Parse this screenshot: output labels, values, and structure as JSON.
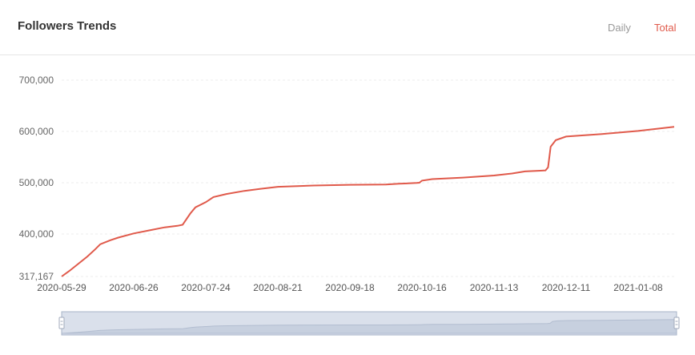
{
  "header": {
    "title": "Followers Trends",
    "tabs": [
      {
        "label": "Daily",
        "active": false
      },
      {
        "label": "Total",
        "active": true
      }
    ]
  },
  "colors": {
    "line": "#e05a4b",
    "active_tab": "#e05a4b",
    "inactive_tab": "#999999",
    "grid": "#eeeeee",
    "slider_fill": "#d5dbe6"
  },
  "chart_data": {
    "type": "line",
    "title": "",
    "xlabel": "",
    "ylabel": "",
    "ylim": [
      317167,
      700000
    ],
    "y_ticks": [
      317167,
      400000,
      500000,
      600000,
      700000
    ],
    "y_tick_labels": [
      "317,167",
      "400,000",
      "500,000",
      "600,000",
      "700,000"
    ],
    "x_ticks": [
      "2020-05-29",
      "2020-06-26",
      "2020-07-24",
      "2020-08-21",
      "2020-09-18",
      "2020-10-16",
      "2020-11-13",
      "2020-12-11",
      "2021-01-08"
    ],
    "grid": true,
    "legend": "none",
    "series": [
      {
        "x": [
          "2020-05-29",
          "2020-06-01",
          "2020-06-04",
          "2020-06-08",
          "2020-06-11",
          "2020-06-13",
          "2020-06-17",
          "2020-06-20",
          "2020-06-26",
          "2020-07-02",
          "2020-07-08",
          "2020-07-13",
          "2020-07-15",
          "2020-07-18",
          "2020-07-20",
          "2020-07-24",
          "2020-07-27",
          "2020-08-01",
          "2020-08-08",
          "2020-08-14",
          "2020-08-21",
          "2020-09-04",
          "2020-09-18",
          "2020-10-02",
          "2020-10-07",
          "2020-10-14",
          "2020-10-15",
          "2020-10-16",
          "2020-10-20",
          "2020-11-01",
          "2020-11-13",
          "2020-11-20",
          "2020-11-25",
          "2020-12-01",
          "2020-12-03",
          "2020-12-04",
          "2020-12-05",
          "2020-12-07",
          "2020-12-11",
          "2020-12-25",
          "2021-01-08",
          "2021-01-22"
        ],
        "y": [
          317167,
          328000,
          340000,
          356000,
          370000,
          380000,
          388000,
          393000,
          401000,
          407000,
          413000,
          416000,
          418000,
          440000,
          452000,
          462000,
          472000,
          478000,
          484000,
          488000,
          492000,
          494500,
          496000,
          496500,
          498000,
          499500,
          500000,
          504000,
          507000,
          510000,
          514000,
          518000,
          522000,
          523500,
          524000,
          530000,
          570000,
          583000,
          590000,
          595000,
          601000,
          609000
        ]
      }
    ]
  }
}
